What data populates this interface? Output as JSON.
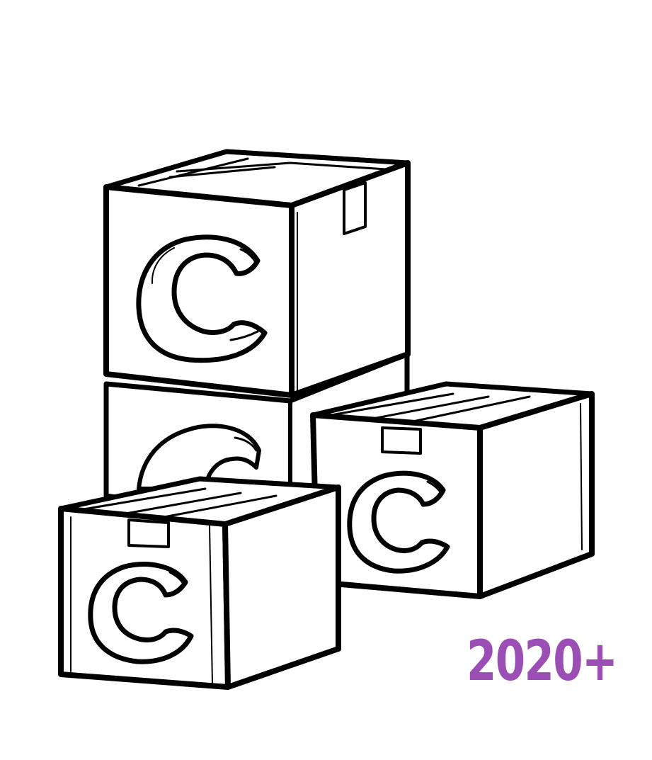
{
  "boxes": [
    {
      "letter": "C",
      "position": "top-stack"
    },
    {
      "letter": "C",
      "position": "bottom-stack"
    },
    {
      "letter": "C",
      "position": "right"
    },
    {
      "letter": "C",
      "position": "front-left"
    }
  ],
  "year_label": "2020+",
  "colors": {
    "ink": "#000000",
    "paper": "#ffffff",
    "accent": "#9b4fb5"
  }
}
